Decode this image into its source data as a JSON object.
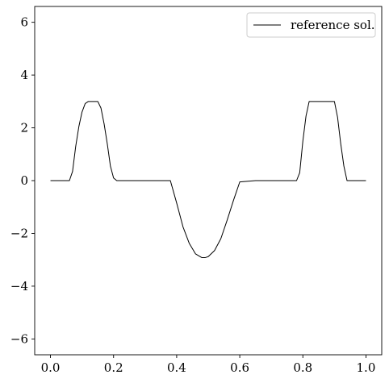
{
  "chart_data": {
    "type": "line",
    "xlim": [
      -0.05,
      1.05
    ],
    "ylim": [
      -6.6,
      6.6
    ],
    "grid": false,
    "legend": {
      "placement": "top-right"
    },
    "x_ticks": [
      0.0,
      0.2,
      0.4,
      0.6,
      0.8,
      1.0
    ],
    "x_tick_labels": [
      "0.0",
      "0.2",
      "0.4",
      "0.6",
      "0.8",
      "1.0"
    ],
    "y_ticks": [
      -6,
      -4,
      -2,
      0,
      2,
      4,
      6
    ],
    "y_tick_labels": [
      "−6",
      "−4",
      "−2",
      "0",
      "2",
      "4",
      "6"
    ],
    "series": [
      {
        "name": "reference sol.",
        "color": "#000000",
        "x": [
          0.0,
          0.06,
          0.07,
          0.08,
          0.09,
          0.1,
          0.11,
          0.12,
          0.13,
          0.14,
          0.15,
          0.16,
          0.17,
          0.18,
          0.19,
          0.2,
          0.21,
          0.25,
          0.3,
          0.35,
          0.38,
          0.4,
          0.42,
          0.44,
          0.46,
          0.48,
          0.49,
          0.5,
          0.52,
          0.54,
          0.56,
          0.58,
          0.6,
          0.65,
          0.7,
          0.75,
          0.78,
          0.79,
          0.8,
          0.81,
          0.82,
          0.83,
          0.85,
          0.88,
          0.9,
          0.91,
          0.92,
          0.93,
          0.94,
          1.0
        ],
        "y": [
          0.0,
          0.0,
          0.35,
          1.3,
          2.05,
          2.6,
          2.92,
          3.0,
          3.0,
          3.0,
          3.0,
          2.75,
          2.15,
          1.4,
          0.55,
          0.1,
          0.0,
          0.0,
          0.0,
          0.0,
          0.0,
          -0.85,
          -1.75,
          -2.38,
          -2.78,
          -2.92,
          -2.92,
          -2.88,
          -2.65,
          -2.2,
          -1.5,
          -0.75,
          -0.05,
          0.0,
          0.0,
          0.0,
          0.0,
          0.3,
          1.5,
          2.45,
          3.0,
          3.0,
          3.0,
          3.0,
          3.0,
          2.4,
          1.4,
          0.55,
          0.0,
          0.0
        ]
      }
    ]
  }
}
